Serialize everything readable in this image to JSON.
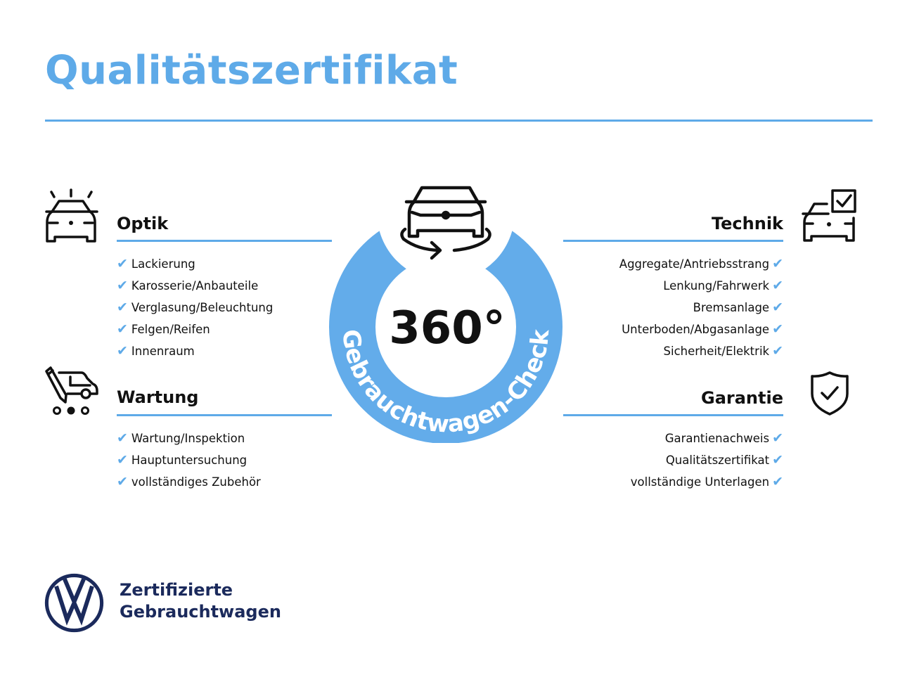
{
  "title": "Qualitätszertifikat",
  "center": {
    "badge_number": "360°",
    "ring_text": "Gebrauchtwagen-Check",
    "icon": "car-rotate-icon",
    "ring_color": "#63acea"
  },
  "sections": {
    "optik": {
      "title": "Optik",
      "icon": "car-lights-icon",
      "items": [
        "Lackierung",
        "Karosserie/Anbauteile",
        "Verglasung/Beleuchtung",
        "Felgen/Reifen",
        "Innenraum"
      ]
    },
    "wartung": {
      "title": "Wartung",
      "icon": "service-van-icon",
      "items": [
        "Wartung/Inspektion",
        "Hauptuntersuchung",
        "vollständiges Zubehör"
      ]
    },
    "technik": {
      "title": "Technik",
      "icon": "car-checkbox-icon",
      "items": [
        "Aggregate/Antriebsstrang",
        "Lenkung/Fahrwerk",
        "Bremsanlage",
        "Unterboden/Abgasanlage",
        "Sicherheit/Elektrik"
      ]
    },
    "garantie": {
      "title": "Garantie",
      "icon": "shield-check-icon",
      "items": [
        "Garantienachweis",
        "Qualitätszertifikat",
        "vollständige Unterlagen"
      ]
    }
  },
  "check_mark": "✔",
  "footer": {
    "logo": "VW",
    "line1": "Zertifizierte",
    "line2": "Gebrauchtwagen"
  },
  "colors": {
    "accent": "#5eaae8",
    "brand_navy": "#1b2a5c"
  }
}
